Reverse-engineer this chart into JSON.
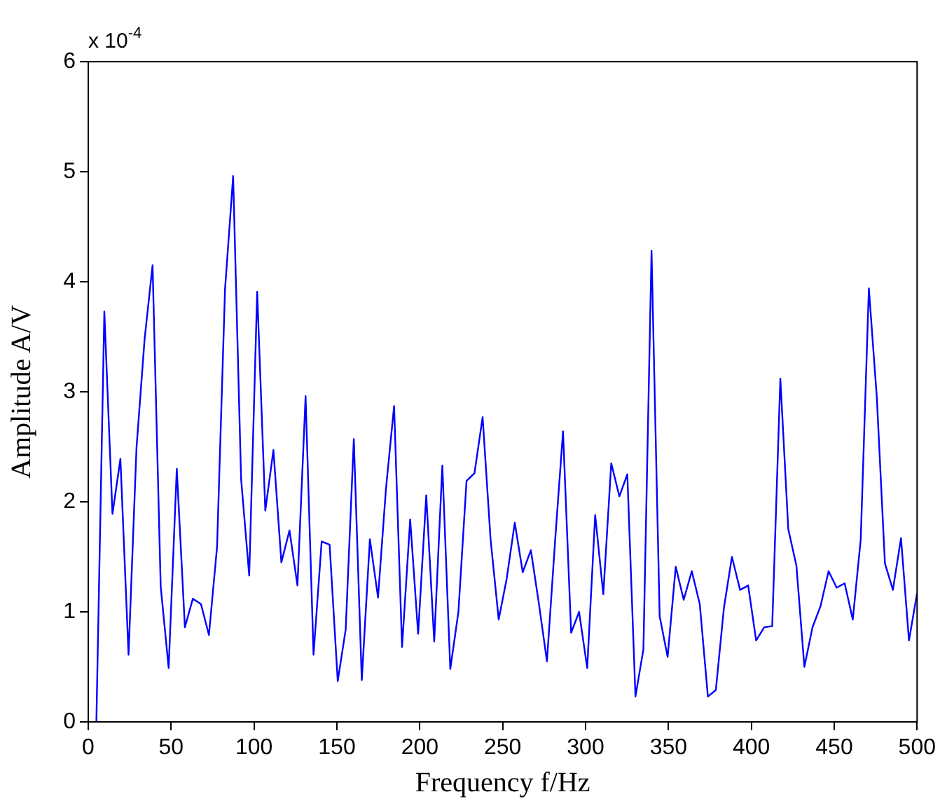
{
  "chart_data": {
    "type": "line",
    "xlabel": "Frequency f/Hz",
    "ylabel": "Amplitude A/V",
    "annotations": [
      "x 10$^{-4}$"
    ],
    "x": [
      4.9,
      9.7,
      14.6,
      19.4,
      24.3,
      29.1,
      34.0,
      38.8,
      43.7,
      48.5,
      53.4,
      58.3,
      63.1,
      68.0,
      72.8,
      77.7,
      82.5,
      87.4,
      92.2,
      97.1,
      101.9,
      106.8,
      111.7,
      116.5,
      121.4,
      126.2,
      131.1,
      135.9,
      140.8,
      145.6,
      150.5,
      155.3,
      160.2,
      165.0,
      169.9,
      174.8,
      179.6,
      184.5,
      189.3,
      194.2,
      199.0,
      203.9,
      208.7,
      213.6,
      218.4,
      223.3,
      228.2,
      233.0,
      237.9,
      242.7,
      247.6,
      252.4,
      257.3,
      262.1,
      267.0,
      271.8,
      276.7,
      281.6,
      286.4,
      291.3,
      296.1,
      301.0,
      305.8,
      310.7,
      315.5,
      320.4,
      325.2,
      330.1,
      334.9,
      339.8,
      344.7,
      349.5,
      354.4,
      359.2,
      364.1,
      368.9,
      373.8,
      378.6,
      383.5,
      388.3,
      393.2,
      398.1,
      402.9,
      407.8,
      412.6,
      417.5,
      422.3,
      427.2,
      432.0,
      436.9,
      441.7,
      446.6,
      451.5,
      456.3,
      461.2,
      466.0,
      470.9,
      475.7,
      480.6,
      485.4,
      490.3,
      495.1,
      500
    ],
    "series": [
      {
        "color": "#0000ff",
        "values": [
          0,
          3.73,
          1.89,
          2.39,
          0.61,
          2.49,
          3.48,
          4.15,
          1.23,
          0.49,
          2.3,
          0.86,
          1.12,
          1.07,
          0.79,
          1.59,
          3.93,
          4.96,
          2.21,
          1.33,
          3.91,
          1.92,
          2.47,
          1.45,
          1.74,
          1.24,
          2.96,
          0.61,
          1.64,
          1.61,
          0.37,
          0.84,
          2.57,
          0.38,
          1.66,
          1.13,
          2.12,
          2.87,
          0.68,
          1.84,
          0.8,
          2.06,
          0.73,
          2.33,
          0.48,
          1.0,
          2.19,
          2.26,
          2.77,
          1.66,
          0.93,
          1.3,
          1.81,
          1.36,
          1.56,
          1.08,
          0.55,
          1.64,
          2.64,
          0.81,
          1.0,
          0.49,
          1.88,
          1.16,
          2.35,
          2.05,
          2.25,
          0.23,
          0.66,
          4.28,
          0.96,
          0.59,
          1.41,
          1.11,
          1.37,
          1.07,
          0.23,
          0.29,
          1.04,
          1.5,
          1.2,
          1.24,
          0.74,
          0.86,
          0.87,
          3.12,
          1.75,
          1.42,
          0.5,
          0.86,
          1.05,
          1.37,
          1.22,
          1.26,
          0.93,
          1.66,
          3.94,
          2.95,
          1.44,
          1.2,
          1.67,
          0.74,
          1.17
        ]
      }
    ],
    "xlim": [
      0,
      500
    ],
    "xticks": [
      0,
      50,
      100,
      150,
      200,
      250,
      300,
      350,
      400,
      450,
      500
    ],
    "ylim": [
      0,
      6
    ],
    "yticks": [
      0,
      1,
      2,
      3,
      4,
      5,
      6
    ],
    "grid": false,
    "legend": false,
    "marker": "none",
    "line_style": "solid"
  }
}
